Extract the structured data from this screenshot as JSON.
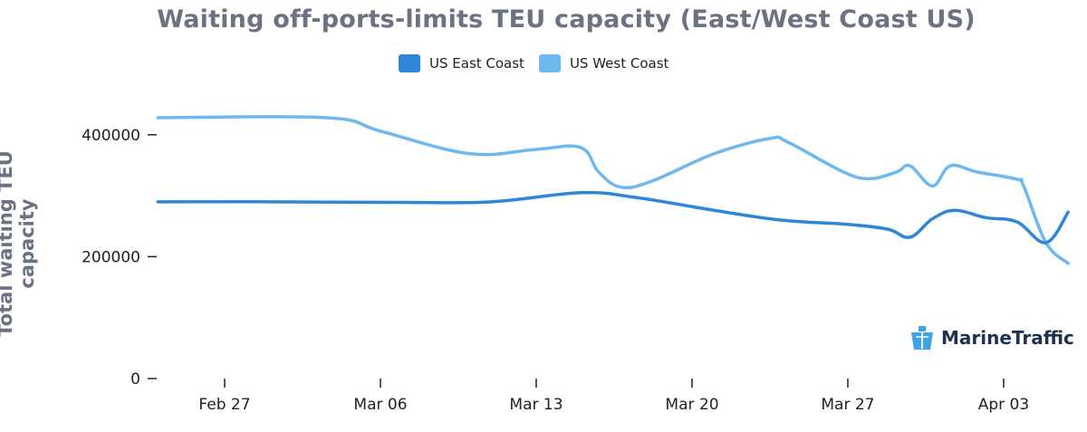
{
  "chart_data": {
    "type": "line",
    "title": "Waiting off-ports-limits TEU capacity (East/West Coast US)",
    "xlabel": "",
    "ylabel": "Total waiting TEU capacity",
    "x_unit": "days relative to Feb 27",
    "xlim": [
      -3,
      37.9
    ],
    "ylim": [
      0,
      450000
    ],
    "x_ticks": [
      {
        "value": 0,
        "label": "Feb 27"
      },
      {
        "value": 7,
        "label": "Mar 06"
      },
      {
        "value": 14,
        "label": "Mar 13"
      },
      {
        "value": 21,
        "label": "Mar 20"
      },
      {
        "value": 28,
        "label": "Mar 27"
      },
      {
        "value": 35,
        "label": "Apr 03"
      }
    ],
    "y_ticks": [
      {
        "value": 0,
        "label": "0"
      },
      {
        "value": 200000,
        "label": "200000"
      },
      {
        "value": 400000,
        "label": "400000"
      }
    ],
    "grid": false,
    "legend_position": "top-center",
    "series": [
      {
        "name": "US East Coast",
        "color": "#2f86d8",
        "x": [
          -3,
          2,
          8,
          12,
          16,
          18.5,
          22,
          25,
          28,
          29.8,
          30.8,
          31.8,
          32.8,
          34.2,
          35.6,
          36.9,
          37.9
        ],
        "y": [
          290000,
          290000,
          289000,
          290000,
          305000,
          297000,
          276000,
          260000,
          253000,
          245000,
          232000,
          262000,
          276000,
          264000,
          257000,
          223000,
          273000
        ]
      },
      {
        "name": "US West Coast",
        "color": "#6db8ee",
        "x": [
          -3,
          4.6,
          7,
          11,
          14,
          16,
          16.8,
          17.8,
          19.2,
          22,
          24.5,
          25.3,
          27.8,
          29,
          30.2,
          30.8,
          31.8,
          32.6,
          33.8,
          35.6,
          35.9,
          36.9,
          37.9
        ],
        "y": [
          428000,
          428000,
          406000,
          369000,
          376000,
          379000,
          339000,
          314000,
          324000,
          369000,
          394000,
          388000,
          339000,
          328000,
          339000,
          349000,
          316000,
          349000,
          339000,
          327000,
          316000,
          223000,
          189000
        ]
      }
    ]
  },
  "legend": {
    "east": "US East Coast",
    "west": "US West Coast"
  },
  "branding": {
    "logo": "MarineTraffic"
  }
}
